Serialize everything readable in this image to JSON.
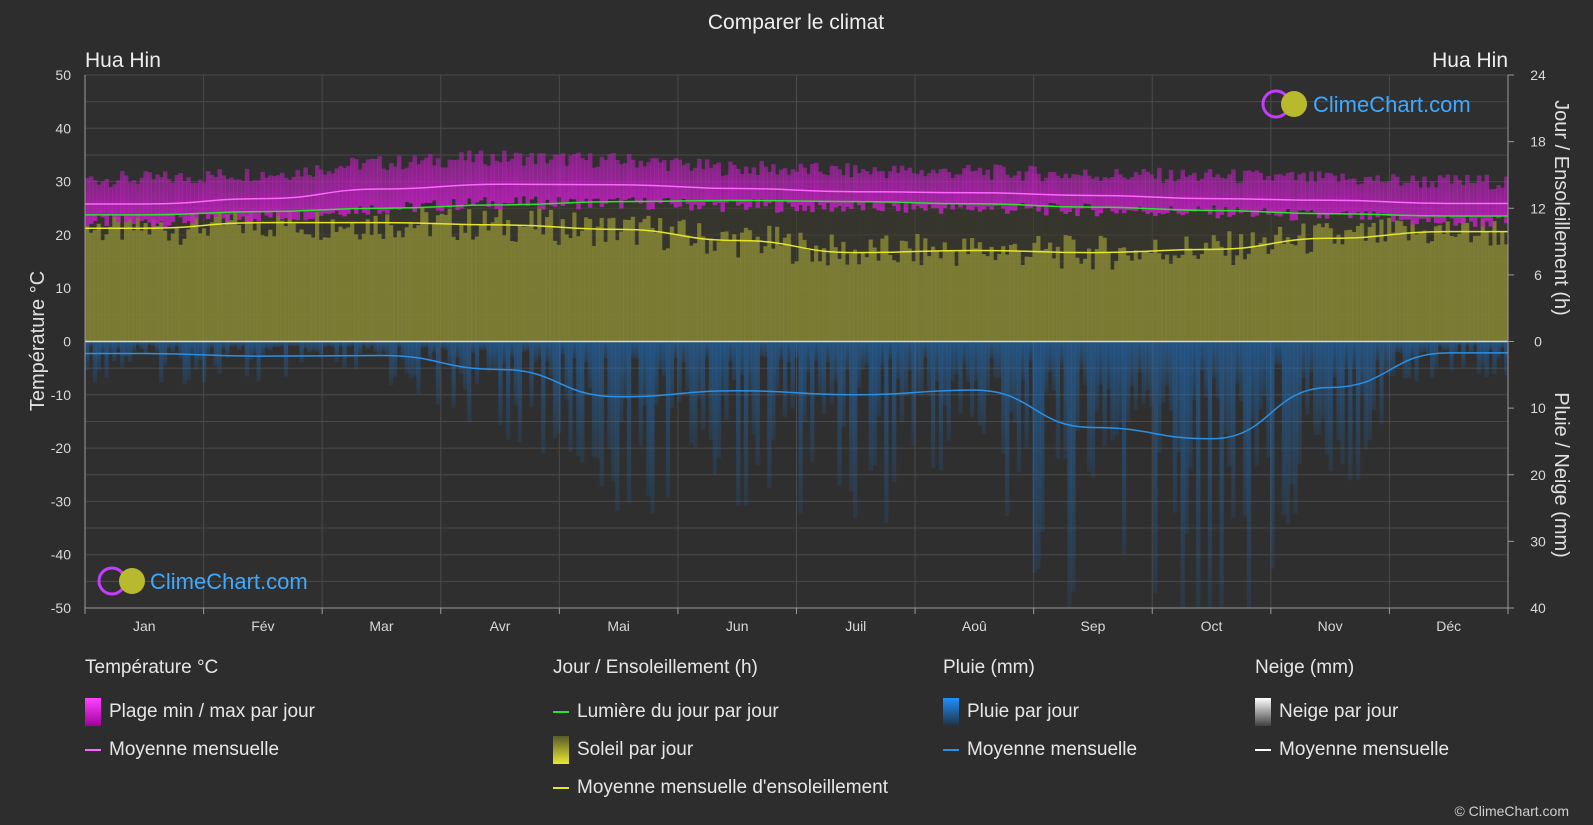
{
  "title": "Comparer le climat",
  "location_left": "Hua Hin",
  "location_right": "Hua Hin",
  "copyright": "© ClimeChart.com",
  "watermark": "ClimeChart.com",
  "chart_data": {
    "type": "area",
    "categories": [
      "Jan",
      "Fév",
      "Mar",
      "Avr",
      "Mai",
      "Jun",
      "Juil",
      "Aoû",
      "Sep",
      "Oct",
      "Nov",
      "Déc"
    ],
    "y_left": {
      "label": "Température °C",
      "range": [
        -50,
        50
      ],
      "ticks": [
        "50",
        "40",
        "30",
        "20",
        "10",
        "0",
        "-10",
        "-20",
        "-30",
        "-40",
        "-50"
      ]
    },
    "y_right_top": {
      "label": "Jour / Ensoleillement (h)",
      "range": [
        0,
        24
      ],
      "ticks": [
        "24",
        "18",
        "12",
        "6",
        "0"
      ]
    },
    "y_right_bottom": {
      "label": "Pluie / Neige (mm)",
      "range": [
        0,
        40
      ],
      "ticks": [
        "10",
        "20",
        "30",
        "40"
      ]
    },
    "grid": true,
    "series": [
      {
        "name": "Moyenne mensuelle",
        "group": "Température °C",
        "color": "#ff66ff",
        "values": [
          25.8,
          26.8,
          28.6,
          29.5,
          29.4,
          28.7,
          28.1,
          27.9,
          27.4,
          26.8,
          26.5,
          25.9
        ]
      },
      {
        "name": "Plage min / max par jour",
        "group": "Température °C",
        "color": "#e000e0",
        "min": [
          22.5,
          23.5,
          25.0,
          26.0,
          26.0,
          25.5,
          25.2,
          25.0,
          24.7,
          24.3,
          23.5,
          22.5
        ],
        "max": [
          30.5,
          31.5,
          33.5,
          34.5,
          34.0,
          32.5,
          32.0,
          31.8,
          31.3,
          31.0,
          30.5,
          30.0
        ]
      },
      {
        "name": "Lumière du jour par jour",
        "group": "Jour / Ensoleillement (h)",
        "color": "#33dd33",
        "values": [
          11.4,
          11.7,
          12.0,
          12.3,
          12.6,
          12.7,
          12.6,
          12.4,
          12.1,
          11.8,
          11.5,
          11.3
        ]
      },
      {
        "name": "Soleil par jour",
        "group": "Jour / Ensoleillement (h)",
        "color": "#c8c83a",
        "values": [
          10.2,
          10.7,
          10.7,
          10.5,
          10.1,
          9.1,
          8.0,
          8.2,
          8.0,
          8.3,
          9.3,
          9.9
        ]
      },
      {
        "name": "Moyenne mensuelle d'ensoleillement",
        "group": "Jour / Ensoleillement (h)",
        "color": "#e6e62a",
        "values": [
          10.2,
          10.7,
          10.7,
          10.5,
          10.1,
          9.1,
          8.0,
          8.2,
          8.0,
          8.3,
          9.3,
          9.9
        ]
      },
      {
        "name": "Pluie par jour",
        "group": "Pluie (mm)",
        "color": "#1f7fd6",
        "values": [
          1.8,
          2.2,
          2.1,
          4.2,
          8.3,
          7.4,
          8.0,
          7.3,
          12.9,
          14.6,
          6.9,
          1.7
        ]
      },
      {
        "name": "Moyenne mensuelle",
        "group": "Pluie (mm)",
        "color": "#2a90e6",
        "values": [
          1.8,
          2.2,
          2.1,
          4.2,
          8.3,
          7.4,
          8.0,
          7.3,
          12.9,
          14.6,
          6.9,
          1.7
        ]
      },
      {
        "name": "Neige par jour",
        "group": "Neige (mm)",
        "color": "#d0d0d0",
        "values": [
          0,
          0,
          0,
          0,
          0,
          0,
          0,
          0,
          0,
          0,
          0,
          0
        ]
      },
      {
        "name": "Moyenne mensuelle",
        "group": "Neige (mm)",
        "color": "#ffffff",
        "values": [
          0,
          0,
          0,
          0,
          0,
          0,
          0,
          0,
          0,
          0,
          0,
          0
        ]
      }
    ]
  },
  "legend": {
    "temp": {
      "title": "Température °C",
      "items": [
        "Plage min / max par jour",
        "Moyenne mensuelle"
      ]
    },
    "sun": {
      "title": "Jour / Ensoleillement (h)",
      "items": [
        "Lumière du jour par jour",
        "Soleil par jour",
        "Moyenne mensuelle d'ensoleillement"
      ]
    },
    "rain": {
      "title": "Pluie (mm)",
      "items": [
        "Pluie par jour",
        "Moyenne mensuelle"
      ]
    },
    "snow": {
      "title": "Neige (mm)",
      "items": [
        "Neige par jour",
        "Moyenne mensuelle"
      ]
    }
  }
}
